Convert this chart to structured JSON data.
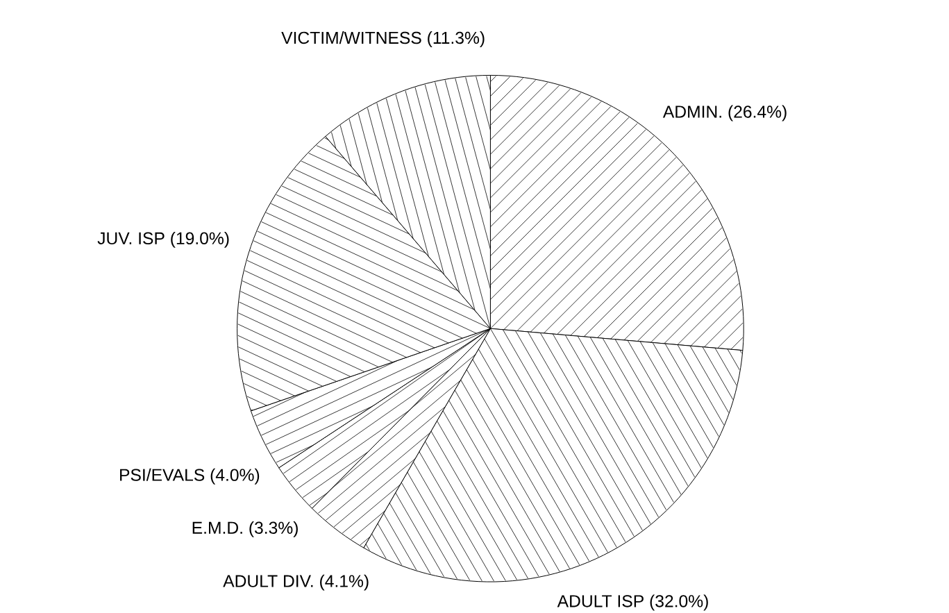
{
  "chart_data": {
    "type": "pie",
    "categories": [
      "ADMIN.",
      "ADULT ISP",
      "ADULT DIV.",
      "E.M.D.",
      "PSI/EVALS",
      "JUV. ISP",
      "VICTIM/WITNESS"
    ],
    "values": [
      26.4,
      32.0,
      4.1,
      3.3,
      4.0,
      19.0,
      11.3
    ],
    "value_labels": [
      "(26.4%)",
      "(32.0%)",
      "(4.1%)",
      "(3.3%)",
      "(4.0%)",
      "(19.0%)",
      "(11.3%)"
    ],
    "colors": [
      "#ffffff",
      "#ffffff",
      "#ffffff",
      "#ffffff",
      "#ffffff",
      "#ffffff",
      "#ffffff"
    ]
  }
}
